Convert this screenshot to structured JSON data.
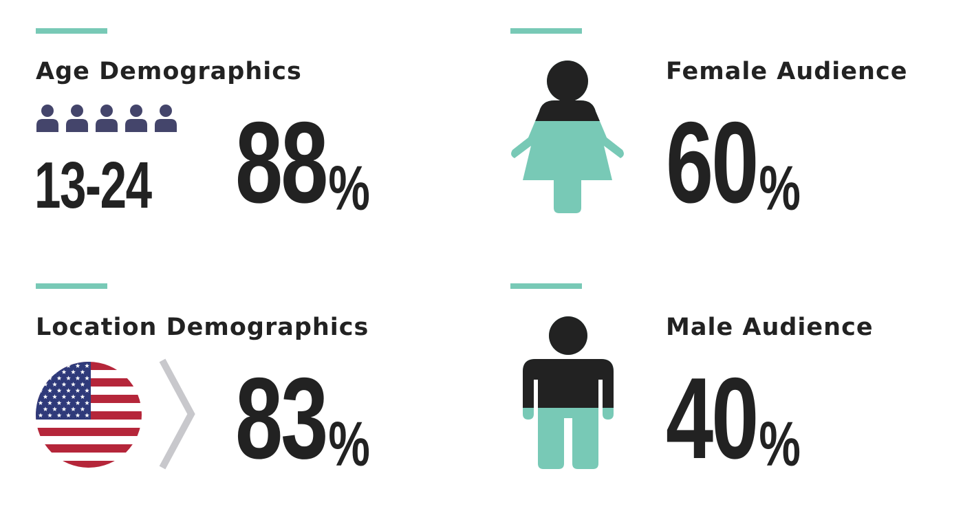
{
  "colors": {
    "accent": "#78c9b6",
    "text": "#222222",
    "people_icon": "#44456b",
    "chevron": "#c8c8cc",
    "flag_red": "#b5263a",
    "flag_blue": "#2f3a7a"
  },
  "panels": {
    "age": {
      "title": "Age Demographics",
      "icon": "people-row-icon",
      "people_icon_count": 5,
      "range_label": "13-24",
      "value": "88",
      "unit": "%"
    },
    "female": {
      "title": "Female Audience",
      "icon": "female-figure-icon",
      "value": "60",
      "unit": "%",
      "fill_fraction": 0.6
    },
    "location": {
      "title": "Location Demographics",
      "icon": "us-flag-icon",
      "separator_icon": "chevron-right-icon",
      "value": "83",
      "unit": "%"
    },
    "male": {
      "title": "Male Audience",
      "icon": "male-figure-icon",
      "value": "40",
      "unit": "%",
      "fill_fraction": 0.4
    }
  }
}
